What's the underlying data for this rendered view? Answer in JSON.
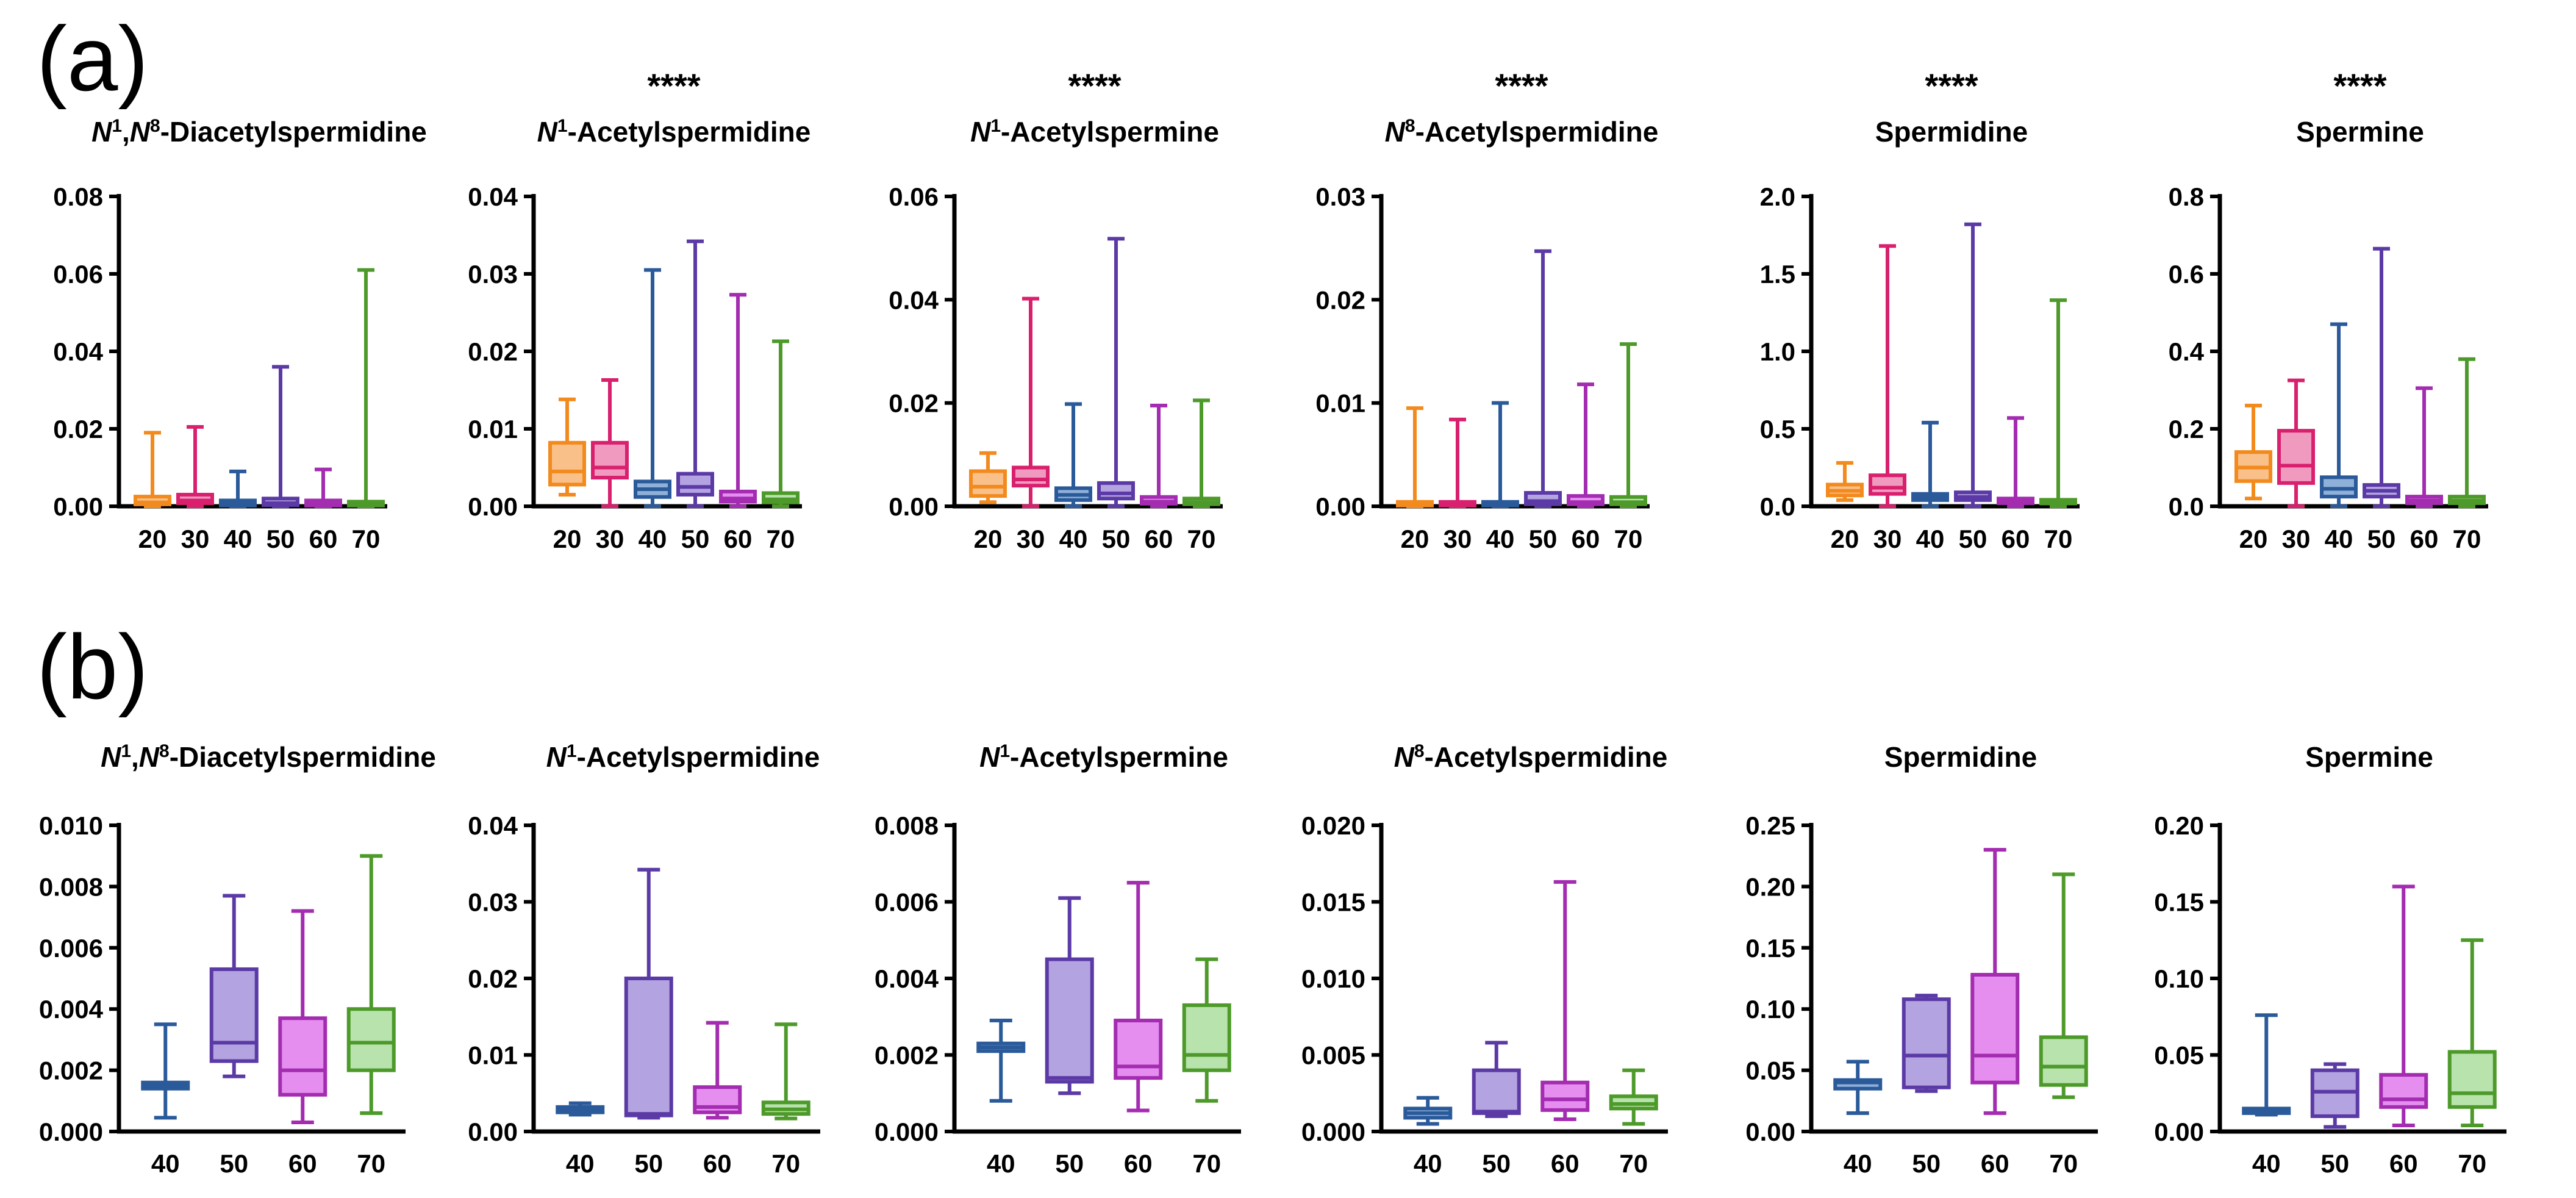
{
  "panels": [
    {
      "label": "(a)"
    },
    {
      "label": "(b)"
    }
  ],
  "colors": {
    "20": "#f28a1e",
    "30": "#d9206e",
    "40": "#2a5a9a",
    "50": "#5b3aa6",
    "60": "#a32cb0",
    "70": "#4d9a2a",
    "fill_50": "#b3a3e0",
    "fill_60": "#e58ef0",
    "fill_70": "#b8e3ad",
    "fill_20": "#f9c08a",
    "fill_30": "#f09ac0",
    "fill_40": "#8fb0d8"
  },
  "chart_data": [
    {
      "row": "a",
      "type": "box",
      "title_parts": [
        {
          "t": "N",
          "i": true
        },
        {
          "t": "1",
          "sup": true
        },
        {
          "t": ",",
          "i": false
        },
        {
          "t": "N",
          "i": true
        },
        {
          "t": "8",
          "sup": true
        },
        {
          "t": "-Diacetylspermidine"
        }
      ],
      "significance": "",
      "categories": [
        "20",
        "30",
        "40",
        "50",
        "60",
        "70"
      ],
      "ylim": [
        0,
        0.08
      ],
      "yticks": [
        0,
        0.02,
        0.04,
        0.06,
        0.08
      ],
      "ytick_labels": [
        "0.00",
        "0.02",
        "0.04",
        "0.06",
        "0.08"
      ],
      "boxes": [
        {
          "min": 0.0,
          "q1": 0.0005,
          "median": 0.001,
          "q3": 0.0025,
          "max": 0.019
        },
        {
          "min": 0.0,
          "q1": 0.0008,
          "median": 0.0015,
          "q3": 0.003,
          "max": 0.0205
        },
        {
          "min": 0.0,
          "q1": 0.0002,
          "median": 0.0006,
          "q3": 0.0015,
          "max": 0.009
        },
        {
          "min": 0.0,
          "q1": 0.0003,
          "median": 0.0008,
          "q3": 0.002,
          "max": 0.036
        },
        {
          "min": 0.0,
          "q1": 0.0002,
          "median": 0.0006,
          "q3": 0.0015,
          "max": 0.0095
        },
        {
          "min": 0.0,
          "q1": 0.0002,
          "median": 0.0005,
          "q3": 0.0012,
          "max": 0.061
        }
      ]
    },
    {
      "row": "a",
      "type": "box",
      "title_parts": [
        {
          "t": "N",
          "i": true
        },
        {
          "t": "1",
          "sup": true
        },
        {
          "t": "-Acetylspermidine"
        }
      ],
      "significance": "****",
      "categories": [
        "20",
        "30",
        "40",
        "50",
        "60",
        "70"
      ],
      "ylim": [
        0,
        0.04
      ],
      "yticks": [
        0,
        0.01,
        0.02,
        0.03,
        0.04
      ],
      "ytick_labels": [
        "0.00",
        "0.01",
        "0.02",
        "0.03",
        "0.04"
      ],
      "boxes": [
        {
          "min": 0.0015,
          "q1": 0.0028,
          "median": 0.0045,
          "q3": 0.0082,
          "max": 0.0138
        },
        {
          "min": 0.0,
          "q1": 0.0037,
          "median": 0.005,
          "q3": 0.0082,
          "max": 0.0163
        },
        {
          "min": 0.0,
          "q1": 0.0012,
          "median": 0.0022,
          "q3": 0.0032,
          "max": 0.0305
        },
        {
          "min": 0.0,
          "q1": 0.0015,
          "median": 0.0025,
          "q3": 0.0042,
          "max": 0.0342
        },
        {
          "min": 0.0,
          "q1": 0.0006,
          "median": 0.001,
          "q3": 0.0019,
          "max": 0.0273
        },
        {
          "min": 0.0,
          "q1": 0.0005,
          "median": 0.0009,
          "q3": 0.0017,
          "max": 0.0213
        }
      ]
    },
    {
      "row": "a",
      "type": "box",
      "title_parts": [
        {
          "t": "N",
          "i": true
        },
        {
          "t": "1",
          "sup": true
        },
        {
          "t": "-Acetylspermine"
        }
      ],
      "significance": "****",
      "categories": [
        "20",
        "30",
        "40",
        "50",
        "60",
        "70"
      ],
      "ylim": [
        0,
        0.06
      ],
      "yticks": [
        0,
        0.02,
        0.04,
        0.06
      ],
      "ytick_labels": [
        "0.00",
        "0.02",
        "0.04",
        "0.06"
      ],
      "boxes": [
        {
          "min": 0.0008,
          "q1": 0.002,
          "median": 0.0038,
          "q3": 0.0068,
          "max": 0.0103
        },
        {
          "min": 0.0,
          "q1": 0.004,
          "median": 0.0052,
          "q3": 0.0075,
          "max": 0.0402
        },
        {
          "min": 0.0,
          "q1": 0.0012,
          "median": 0.0022,
          "q3": 0.0035,
          "max": 0.0198
        },
        {
          "min": 0.0,
          "q1": 0.0015,
          "median": 0.0025,
          "q3": 0.0045,
          "max": 0.0518
        },
        {
          "min": 0.0,
          "q1": 0.0005,
          "median": 0.0009,
          "q3": 0.0018,
          "max": 0.0195
        },
        {
          "min": 0.0,
          "q1": 0.0004,
          "median": 0.0008,
          "q3": 0.0015,
          "max": 0.0205
        }
      ]
    },
    {
      "row": "a",
      "type": "box",
      "title_parts": [
        {
          "t": "N",
          "i": true
        },
        {
          "t": "8",
          "sup": true
        },
        {
          "t": "-Acetylspermidine"
        }
      ],
      "significance": "****",
      "categories": [
        "20",
        "30",
        "40",
        "50",
        "60",
        "70"
      ],
      "ylim": [
        0,
        0.03
      ],
      "yticks": [
        0,
        0.01,
        0.02,
        0.03
      ],
      "ytick_labels": [
        "0.00",
        "0.01",
        "0.02",
        "0.03"
      ],
      "boxes": [
        {
          "min": 0.0,
          "q1": 0.0001,
          "median": 0.0002,
          "q3": 0.0004,
          "max": 0.0095
        },
        {
          "min": 0.0,
          "q1": 0.0001,
          "median": 0.0002,
          "q3": 0.0004,
          "max": 0.0084
        },
        {
          "min": 0.0,
          "q1": 0.0001,
          "median": 0.0002,
          "q3": 0.0004,
          "max": 0.01
        },
        {
          "min": 0.0,
          "q1": 0.0002,
          "median": 0.0005,
          "q3": 0.0013,
          "max": 0.0247
        },
        {
          "min": 0.0,
          "q1": 0.0002,
          "median": 0.0004,
          "q3": 0.001,
          "max": 0.0118
        },
        {
          "min": 0.0,
          "q1": 0.0002,
          "median": 0.0004,
          "q3": 0.0009,
          "max": 0.0157
        }
      ]
    },
    {
      "row": "a",
      "type": "box",
      "title_parts": [
        {
          "t": "Spermidine"
        }
      ],
      "significance": "****",
      "categories": [
        "20",
        "30",
        "40",
        "50",
        "60",
        "70"
      ],
      "ylim": [
        0,
        2.0
      ],
      "yticks": [
        0,
        0.5,
        1.0,
        1.5,
        2.0
      ],
      "ytick_labels": [
        "0.0",
        "0.5",
        "1.0",
        "1.5",
        "2.0"
      ],
      "boxes": [
        {
          "min": 0.04,
          "q1": 0.07,
          "median": 0.1,
          "q3": 0.14,
          "max": 0.28
        },
        {
          "min": 0.0,
          "q1": 0.08,
          "median": 0.12,
          "q3": 0.2,
          "max": 1.68
        },
        {
          "min": 0.0,
          "q1": 0.04,
          "median": 0.06,
          "q3": 0.08,
          "max": 0.54
        },
        {
          "min": 0.0,
          "q1": 0.04,
          "median": 0.06,
          "q3": 0.09,
          "max": 1.82
        },
        {
          "min": 0.0,
          "q1": 0.02,
          "median": 0.03,
          "q3": 0.05,
          "max": 0.57
        },
        {
          "min": 0.0,
          "q1": 0.02,
          "median": 0.03,
          "q3": 0.04,
          "max": 1.33
        }
      ]
    },
    {
      "row": "a",
      "type": "box",
      "title_parts": [
        {
          "t": "Spermine"
        }
      ],
      "significance": "****",
      "categories": [
        "20",
        "30",
        "40",
        "50",
        "60",
        "70"
      ],
      "ylim": [
        0,
        0.8
      ],
      "yticks": [
        0,
        0.2,
        0.4,
        0.6,
        0.8
      ],
      "ytick_labels": [
        "0.0",
        "0.2",
        "0.4",
        "0.6",
        "0.8"
      ],
      "boxes": [
        {
          "min": 0.02,
          "q1": 0.065,
          "median": 0.1,
          "q3": 0.14,
          "max": 0.26
        },
        {
          "min": 0.0,
          "q1": 0.06,
          "median": 0.105,
          "q3": 0.195,
          "max": 0.325
        },
        {
          "min": 0.0,
          "q1": 0.025,
          "median": 0.045,
          "q3": 0.075,
          "max": 0.47
        },
        {
          "min": 0.0,
          "q1": 0.025,
          "median": 0.04,
          "q3": 0.055,
          "max": 0.665
        },
        {
          "min": 0.0,
          "q1": 0.008,
          "median": 0.015,
          "q3": 0.025,
          "max": 0.305
        },
        {
          "min": 0.0,
          "q1": 0.008,
          "median": 0.015,
          "q3": 0.025,
          "max": 0.38
        }
      ]
    },
    {
      "row": "b",
      "type": "box",
      "title_parts": [
        {
          "t": "N",
          "i": true
        },
        {
          "t": "1",
          "sup": true
        },
        {
          "t": ",",
          "i": false
        },
        {
          "t": "N",
          "i": true
        },
        {
          "t": "8",
          "sup": true
        },
        {
          "t": "-Diacetylspermidine"
        }
      ],
      "significance": "",
      "categories": [
        "40",
        "50",
        "60",
        "70"
      ],
      "ylim": [
        0,
        0.01
      ],
      "yticks": [
        0,
        0.002,
        0.004,
        0.006,
        0.008,
        0.01
      ],
      "ytick_labels": [
        "0.000",
        "0.002",
        "0.004",
        "0.006",
        "0.008",
        "0.010"
      ],
      "boxes": [
        {
          "min": 0.00045,
          "q1": 0.0014,
          "median": 0.0015,
          "q3": 0.0016,
          "max": 0.0035
        },
        {
          "min": 0.0018,
          "q1": 0.0023,
          "median": 0.0029,
          "q3": 0.0053,
          "max": 0.0077
        },
        {
          "min": 0.0003,
          "q1": 0.0012,
          "median": 0.002,
          "q3": 0.0037,
          "max": 0.0072
        },
        {
          "min": 0.0006,
          "q1": 0.002,
          "median": 0.0029,
          "q3": 0.004,
          "max": 0.009
        }
      ]
    },
    {
      "row": "b",
      "type": "box",
      "title_parts": [
        {
          "t": "N",
          "i": true
        },
        {
          "t": "1",
          "sup": true
        },
        {
          "t": "-Acetylspermidine"
        }
      ],
      "significance": "",
      "categories": [
        "40",
        "50",
        "60",
        "70"
      ],
      "ylim": [
        0,
        0.04
      ],
      "yticks": [
        0,
        0.01,
        0.02,
        0.03,
        0.04
      ],
      "ytick_labels": [
        "0.00",
        "0.01",
        "0.02",
        "0.03",
        "0.04"
      ],
      "boxes": [
        {
          "min": 0.0022,
          "q1": 0.0025,
          "median": 0.0028,
          "q3": 0.0032,
          "max": 0.0037
        },
        {
          "min": 0.0018,
          "q1": 0.0021,
          "median": 0.0023,
          "q3": 0.02,
          "max": 0.0342
        },
        {
          "min": 0.0018,
          "q1": 0.0025,
          "median": 0.0032,
          "q3": 0.0058,
          "max": 0.0142
        },
        {
          "min": 0.0017,
          "q1": 0.0023,
          "median": 0.0029,
          "q3": 0.0038,
          "max": 0.014
        }
      ]
    },
    {
      "row": "b",
      "type": "box",
      "title_parts": [
        {
          "t": "N",
          "i": true
        },
        {
          "t": "1",
          "sup": true
        },
        {
          "t": "-Acetylspermine"
        }
      ],
      "significance": "",
      "categories": [
        "40",
        "50",
        "60",
        "70"
      ],
      "ylim": [
        0,
        0.008
      ],
      "yticks": [
        0,
        0.002,
        0.004,
        0.006,
        0.008
      ],
      "ytick_labels": [
        "0.000",
        "0.002",
        "0.004",
        "0.006",
        "0.008"
      ],
      "boxes": [
        {
          "min": 0.0008,
          "q1": 0.0021,
          "median": 0.0022,
          "q3": 0.0023,
          "max": 0.0029
        },
        {
          "min": 0.001,
          "q1": 0.0013,
          "median": 0.0014,
          "q3": 0.0045,
          "max": 0.0061
        },
        {
          "min": 0.00055,
          "q1": 0.0014,
          "median": 0.0017,
          "q3": 0.0029,
          "max": 0.0065
        },
        {
          "min": 0.0008,
          "q1": 0.0016,
          "median": 0.002,
          "q3": 0.0033,
          "max": 0.0045
        }
      ]
    },
    {
      "row": "b",
      "type": "box",
      "title_parts": [
        {
          "t": "N",
          "i": true
        },
        {
          "t": "8",
          "sup": true
        },
        {
          "t": "-Acetylspermidine"
        }
      ],
      "significance": "",
      "categories": [
        "40",
        "50",
        "60",
        "70"
      ],
      "ylim": [
        0,
        0.02
      ],
      "yticks": [
        0,
        0.005,
        0.01,
        0.015,
        0.02
      ],
      "ytick_labels": [
        "0.000",
        "0.005",
        "0.010",
        "0.015",
        "0.020"
      ],
      "boxes": [
        {
          "min": 0.0005,
          "q1": 0.0009,
          "median": 0.0012,
          "q3": 0.0015,
          "max": 0.0022
        },
        {
          "min": 0.001,
          "q1": 0.0012,
          "median": 0.0013,
          "q3": 0.004,
          "max": 0.0058
        },
        {
          "min": 0.0008,
          "q1": 0.0014,
          "median": 0.0021,
          "q3": 0.0032,
          "max": 0.0163
        },
        {
          "min": 0.0005,
          "q1": 0.0015,
          "median": 0.0018,
          "q3": 0.0023,
          "max": 0.004
        }
      ]
    },
    {
      "row": "b",
      "type": "box",
      "title_parts": [
        {
          "t": "Spermidine"
        }
      ],
      "significance": "",
      "categories": [
        "40",
        "50",
        "60",
        "70"
      ],
      "ylim": [
        0,
        0.25
      ],
      "yticks": [
        0,
        0.05,
        0.1,
        0.15,
        0.2,
        0.25
      ],
      "ytick_labels": [
        "0.00",
        "0.05",
        "0.10",
        "0.15",
        "0.20",
        "0.25"
      ],
      "boxes": [
        {
          "min": 0.015,
          "q1": 0.035,
          "median": 0.04,
          "q3": 0.042,
          "max": 0.057
        },
        {
          "min": 0.033,
          "q1": 0.036,
          "median": 0.062,
          "q3": 0.108,
          "max": 0.111
        },
        {
          "min": 0.015,
          "q1": 0.04,
          "median": 0.062,
          "q3": 0.128,
          "max": 0.23
        },
        {
          "min": 0.028,
          "q1": 0.038,
          "median": 0.053,
          "q3": 0.077,
          "max": 0.21
        }
      ]
    },
    {
      "row": "b",
      "type": "box",
      "title_parts": [
        {
          "t": "Spermine"
        }
      ],
      "significance": "",
      "categories": [
        "40",
        "50",
        "60",
        "70"
      ],
      "ylim": [
        0,
        0.2
      ],
      "yticks": [
        0,
        0.05,
        0.1,
        0.15,
        0.2
      ],
      "ytick_labels": [
        "0.00",
        "0.05",
        "0.10",
        "0.15",
        "0.20"
      ],
      "boxes": [
        {
          "min": 0.011,
          "q1": 0.012,
          "median": 0.013,
          "q3": 0.015,
          "max": 0.076
        },
        {
          "min": 0.003,
          "q1": 0.01,
          "median": 0.026,
          "q3": 0.04,
          "max": 0.044
        },
        {
          "min": 0.004,
          "q1": 0.016,
          "median": 0.021,
          "q3": 0.037,
          "max": 0.16
        },
        {
          "min": 0.004,
          "q1": 0.016,
          "median": 0.025,
          "q3": 0.052,
          "max": 0.125
        }
      ]
    }
  ]
}
